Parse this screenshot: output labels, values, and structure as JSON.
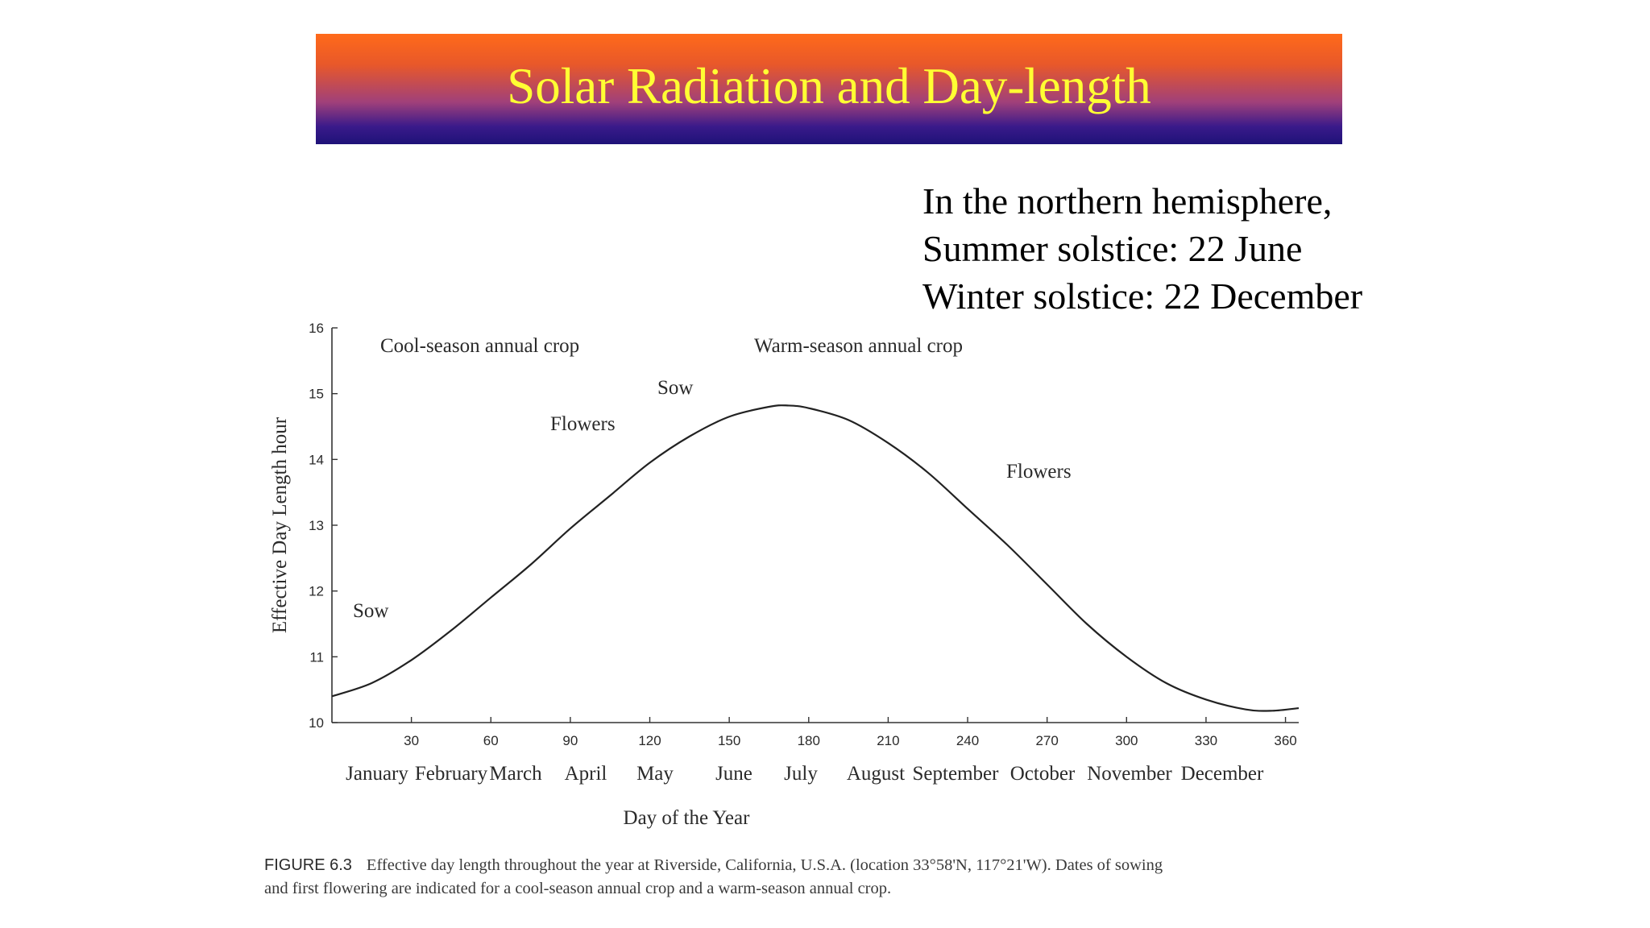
{
  "slide": {
    "title": "Solar Radiation and Day-length",
    "note_lines": [
      "In the northern hemisphere,",
      "Summer solstice: 22 June",
      "Winter solstice: 22 December"
    ],
    "title_color": "#ffff33",
    "banner_colors": [
      "#ff6a1a",
      "#1e1278"
    ]
  },
  "caption": {
    "label": "FIGURE 6.3",
    "text_line1": "Effective day length throughout the year at Riverside, California, U.S.A. (location 33°58'N, 117°21'W). Dates of sowing",
    "text_line2": "and first flowering are indicated for a cool-season annual crop and a warm-season annual crop."
  },
  "chart_data": {
    "type": "line",
    "xlabel": "Day of the Year",
    "ylabel": "Effective Day Length  hour",
    "xlim": [
      0,
      365
    ],
    "ylim": [
      10,
      16
    ],
    "x_ticks": [
      30,
      60,
      90,
      120,
      150,
      180,
      210,
      240,
      270,
      300,
      330,
      360
    ],
    "y_ticks": [
      10,
      11,
      12,
      13,
      14,
      15,
      16
    ],
    "months": [
      "January",
      "February",
      "March",
      "April",
      "May",
      "June",
      "July",
      "August",
      "September",
      "October",
      "November",
      "December"
    ],
    "grid": false,
    "series": [
      {
        "x": [
          0,
          15,
          30,
          45,
          60,
          75,
          90,
          105,
          120,
          135,
          150,
          165,
          172,
          180,
          195,
          210,
          225,
          240,
          255,
          270,
          285,
          300,
          315,
          330,
          345,
          355,
          365
        ],
        "values": [
          10.4,
          10.6,
          10.95,
          11.4,
          11.9,
          12.4,
          12.95,
          13.45,
          13.95,
          14.35,
          14.65,
          14.8,
          14.82,
          14.78,
          14.6,
          14.25,
          13.8,
          13.25,
          12.7,
          12.1,
          11.5,
          11.0,
          10.6,
          10.35,
          10.2,
          10.18,
          10.22
        ]
      }
    ],
    "annotations": {
      "cool_season": "Cool-season annual crop",
      "warm_season": "Warm-season annual crop",
      "cool_sow": "Sow",
      "cool_flowers": "Flowers",
      "warm_sow": "Sow",
      "warm_flowers": "Flowers"
    }
  }
}
